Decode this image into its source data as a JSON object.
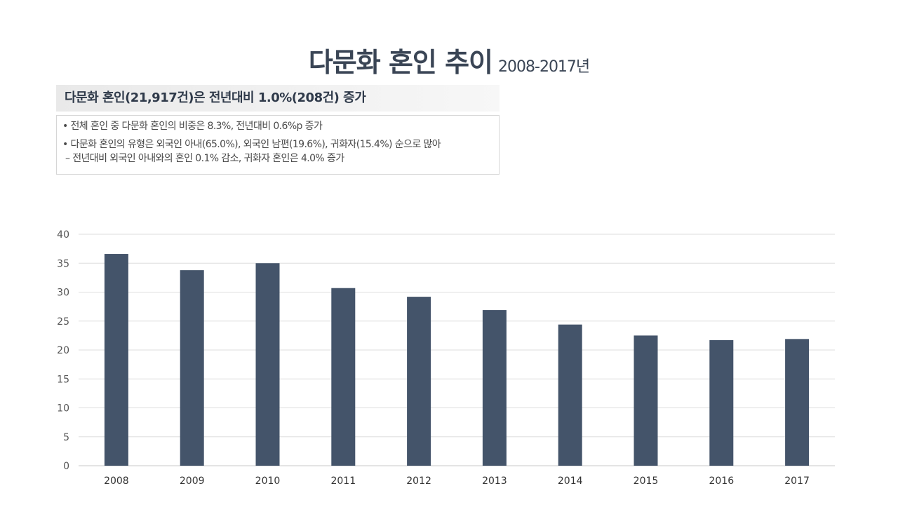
{
  "header": {
    "title": "다문화 혼인 추이",
    "subtitle": "2008-2017년"
  },
  "summary": {
    "headline": "다문화 혼인(21,917건)은 전년대비 1.0%(208건) 증가",
    "bullets": [
      "• 전체 혼인 중 다문화 혼인의 비중은 8.3%, 전년대비 0.6%p 증가",
      "• 다문화 혼인의 유형은 외국인 아내(65.0%), 외국인 남편(19.6%), 귀화자(15.4%) 순으로 많아",
      "– 전년대비 외국인 아내와의 혼인 0.1% 감소, 귀화자 혼인은 4.0% 증가"
    ]
  },
  "chart_data": {
    "type": "bar",
    "categories": [
      "2008",
      "2009",
      "2010",
      "2011",
      "2012",
      "2013",
      "2014",
      "2015",
      "2016",
      "2017"
    ],
    "values": [
      36.6,
      33.8,
      35.0,
      30.7,
      29.2,
      26.9,
      24.4,
      22.5,
      21.7,
      21.9
    ],
    "title": "",
    "xlabel": "",
    "ylabel": "",
    "ylim": [
      0,
      40
    ],
    "yticks": [
      0,
      5,
      10,
      15,
      20,
      25,
      30,
      35,
      40
    ],
    "grid": true,
    "legend": "none",
    "bar_color": "#44546a",
    "grid_color": "#dedede",
    "tick_label_color": "#555555"
  }
}
